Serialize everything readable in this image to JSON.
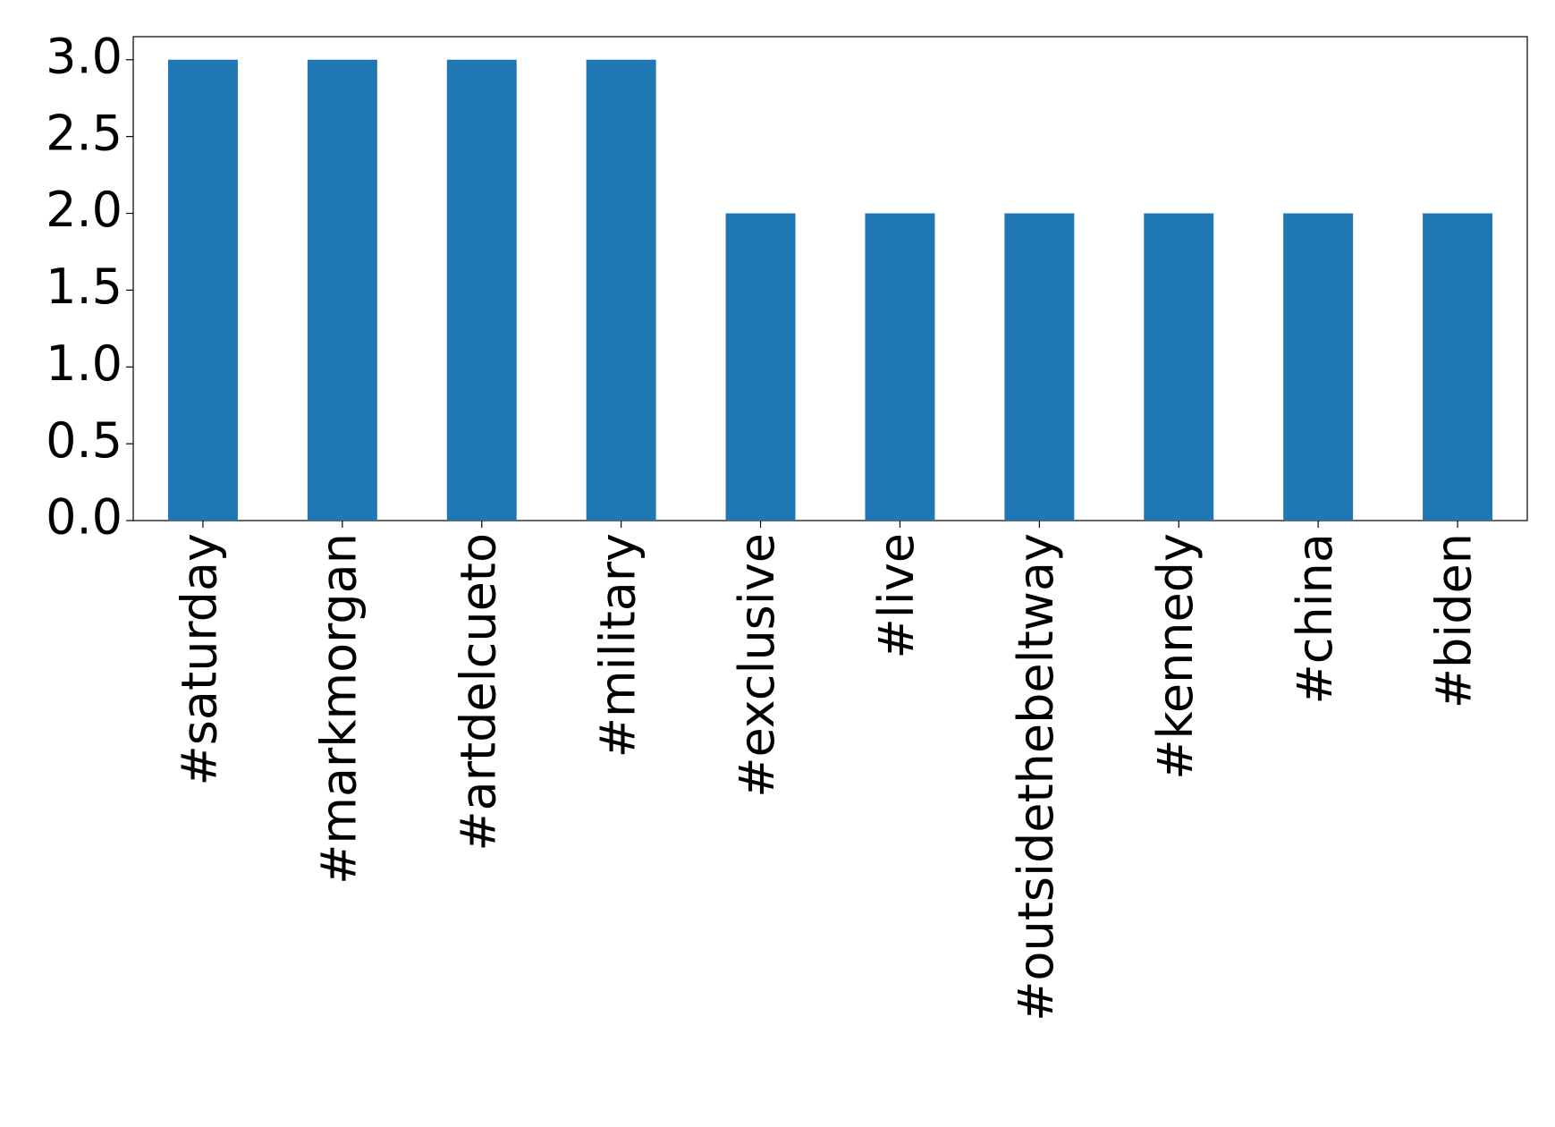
{
  "chart_data": {
    "type": "bar",
    "categories": [
      "#saturday",
      "#markmorgan",
      "#artdelcueto",
      "#military",
      "#exclusive",
      "#live",
      "#outsidethebeltway",
      "#kennedy",
      "#china",
      "#biden"
    ],
    "values": [
      3,
      3,
      3,
      3,
      2,
      2,
      2,
      2,
      2,
      2
    ],
    "color": "#1f77b4",
    "ylim": [
      0,
      3.15
    ],
    "yticks": [
      {
        "value": 0,
        "label": "0.0"
      },
      {
        "value": 0.5,
        "label": "0.5"
      },
      {
        "value": 1,
        "label": "1.0"
      },
      {
        "value": 1.5,
        "label": "1.5"
      },
      {
        "value": 2,
        "label": "2.0"
      },
      {
        "value": 2.5,
        "label": "2.5"
      },
      {
        "value": 3,
        "label": "3.0"
      }
    ],
    "grid": false
  }
}
